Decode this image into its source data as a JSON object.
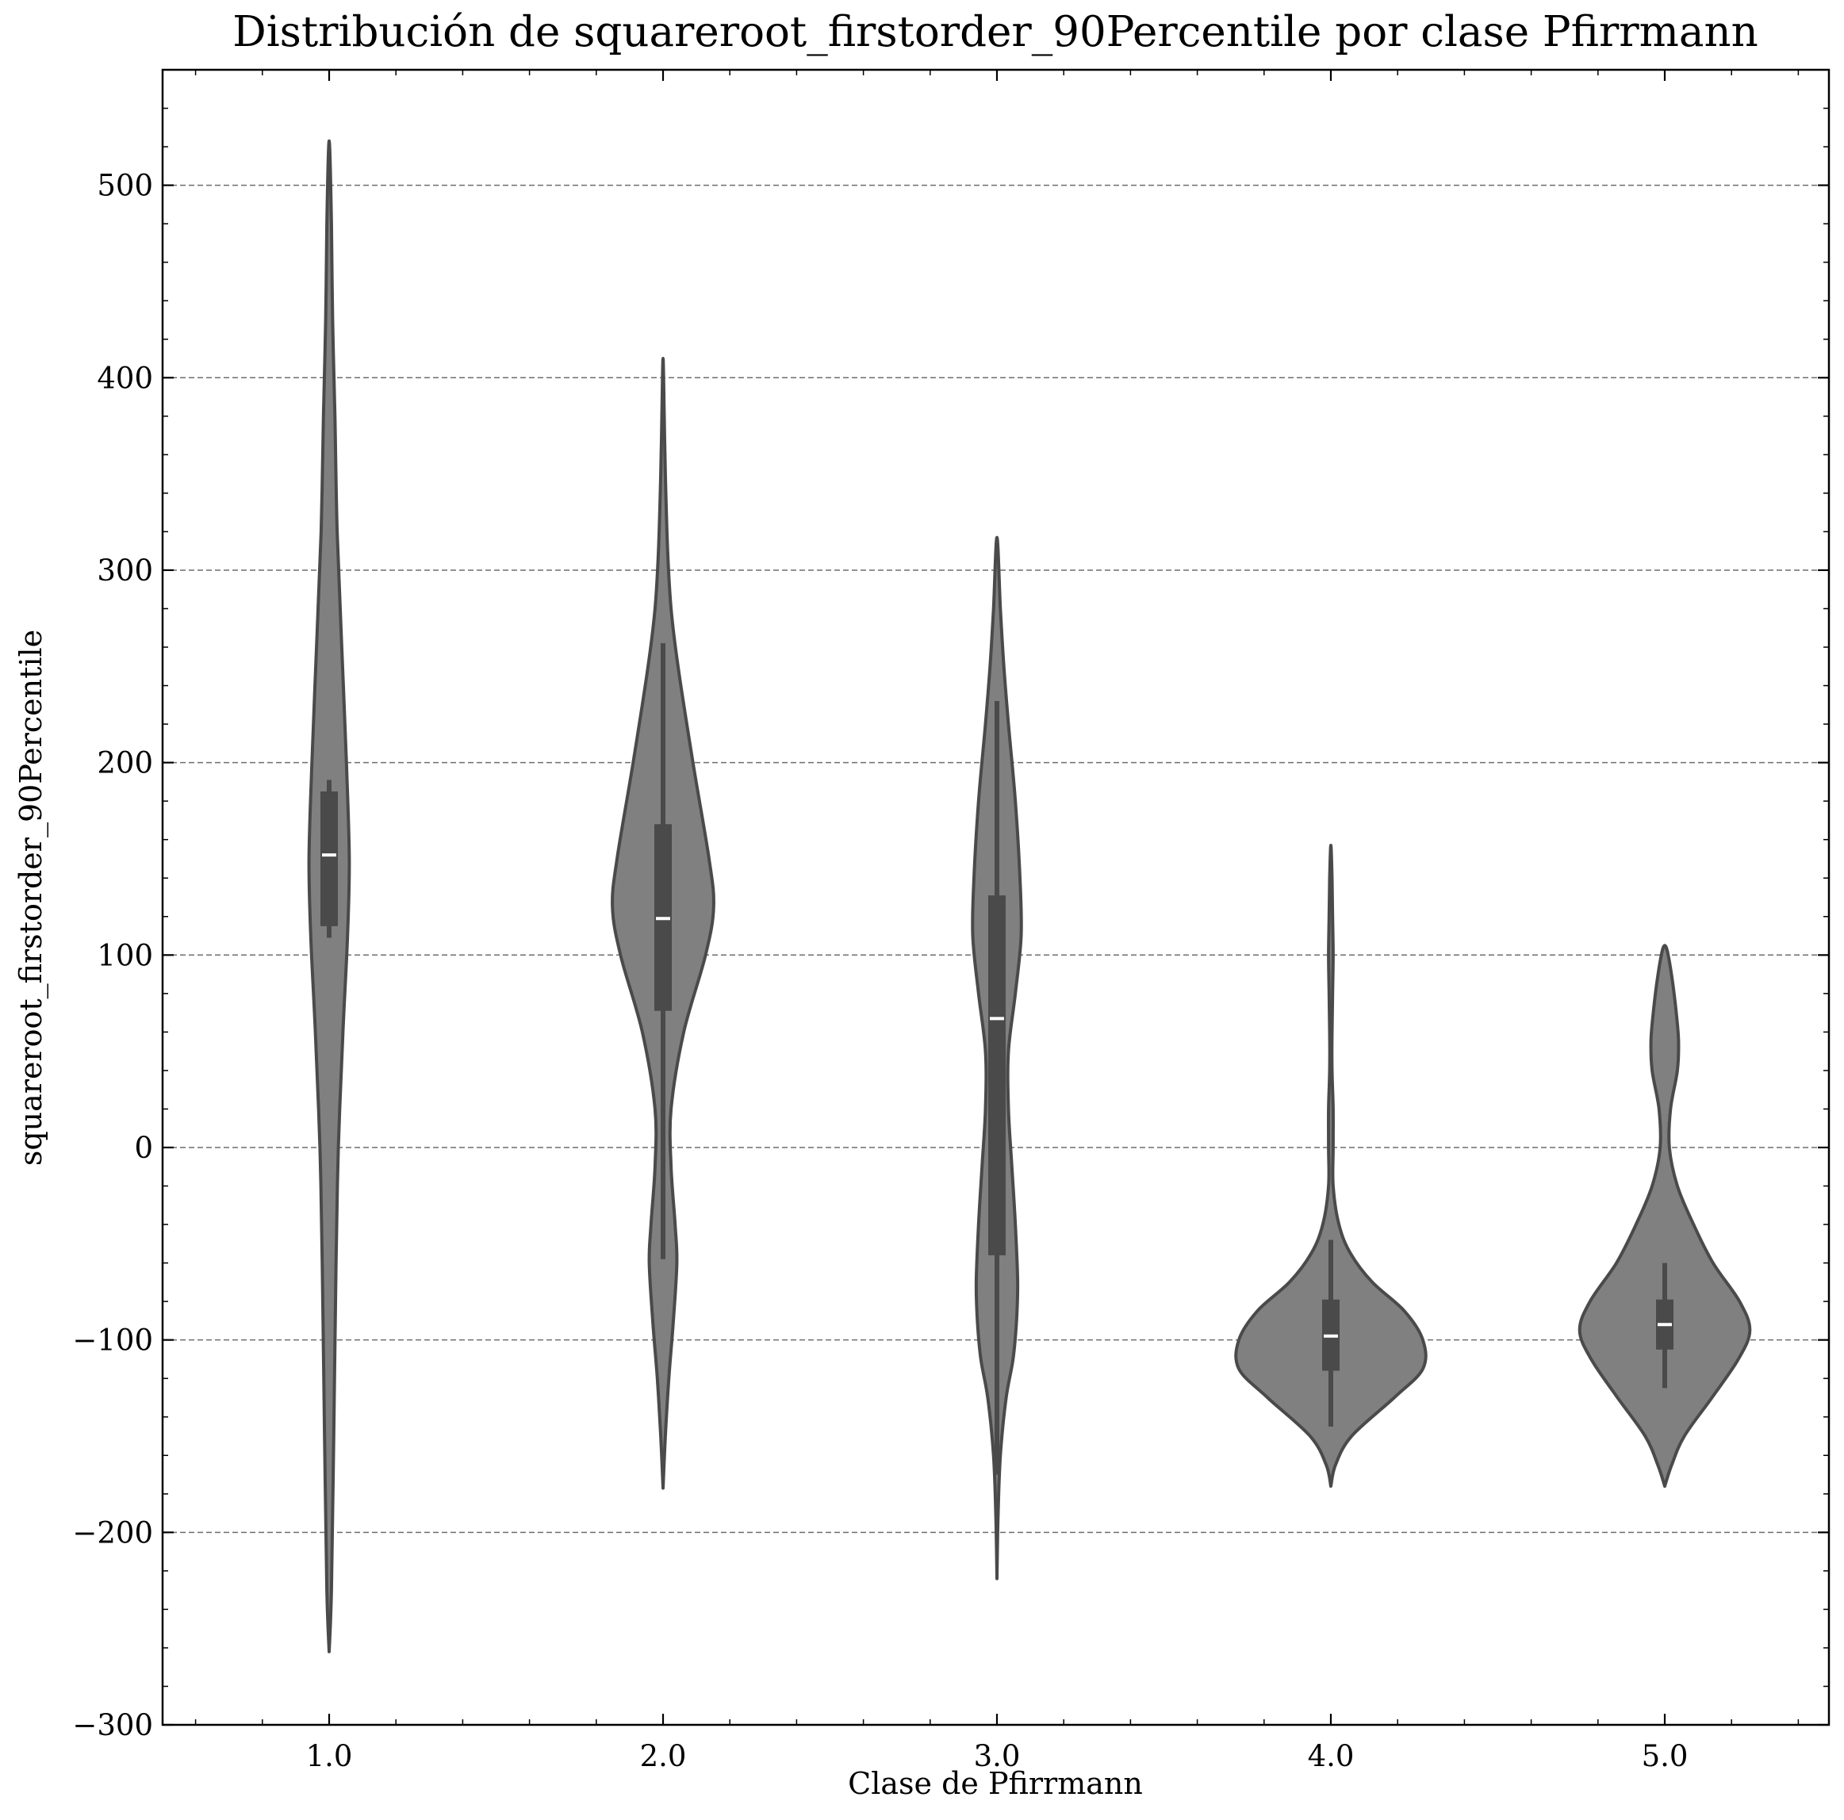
{
  "chart_data": {
    "type": "violin",
    "title": "Distribución de squareroot_firstorder_90Percentile por clase Pfirrmann",
    "xlabel": "Clase de Pfirrmann",
    "ylabel": "squareroot_firstorder_90Percentile",
    "ylim": [
      -300,
      560
    ],
    "yticks": [
      -300,
      -200,
      -100,
      0,
      100,
      200,
      300,
      400,
      500
    ],
    "ytick_labels": [
      "−300",
      "−200",
      "−100",
      "0",
      "100",
      "200",
      "300",
      "400",
      "500"
    ],
    "categories": [
      "1.0",
      "2.0",
      "3.0",
      "4.0",
      "5.0"
    ],
    "grid": true,
    "colors": {
      "violin_fill": "#808080",
      "violin_edge": "#4a4a4a",
      "box": "#4a4a4a",
      "median": "#ffffff",
      "grid": "#6e6e6e"
    },
    "violins": [
      {
        "category": "1.0",
        "min": -262,
        "max": 523,
        "q1": 115,
        "median": 152,
        "q3": 185,
        "whisker_low": 109,
        "whisker_high": 191,
        "profile": [
          [
            -262,
            0
          ],
          [
            -230,
            0.02
          ],
          [
            -150,
            0.04
          ],
          [
            -60,
            0.06
          ],
          [
            0,
            0.08
          ],
          [
            60,
            0.12
          ],
          [
            110,
            0.16
          ],
          [
            150,
            0.175
          ],
          [
            200,
            0.15
          ],
          [
            260,
            0.11
          ],
          [
            320,
            0.07
          ],
          [
            380,
            0.05
          ],
          [
            430,
            0.03
          ],
          [
            480,
            0.02
          ],
          [
            523,
            0
          ]
        ]
      },
      {
        "category": "2.0",
        "min": -177,
        "max": 410,
        "q1": 71,
        "median": 119,
        "q3": 168,
        "whisker_low": -58,
        "whisker_high": 262,
        "profile": [
          [
            -177,
            0
          ],
          [
            -150,
            0.02
          ],
          [
            -120,
            0.05
          ],
          [
            -90,
            0.09
          ],
          [
            -60,
            0.12
          ],
          [
            -40,
            0.105
          ],
          [
            -10,
            0.07
          ],
          [
            20,
            0.07
          ],
          [
            60,
            0.18
          ],
          [
            100,
            0.37
          ],
          [
            125,
            0.44
          ],
          [
            150,
            0.4
          ],
          [
            200,
            0.26
          ],
          [
            250,
            0.13
          ],
          [
            280,
            0.07
          ],
          [
            310,
            0.04
          ],
          [
            350,
            0.02
          ],
          [
            380,
            0.01
          ],
          [
            410,
            0
          ]
        ]
      },
      {
        "category": "3.0",
        "min": -224,
        "max": 317,
        "q1": -56,
        "median": 67,
        "q3": 131,
        "whisker_low": -170,
        "whisker_high": 232,
        "profile": [
          [
            -224,
            0
          ],
          [
            -190,
            0.01
          ],
          [
            -160,
            0.03
          ],
          [
            -130,
            0.08
          ],
          [
            -110,
            0.14
          ],
          [
            -90,
            0.17
          ],
          [
            -70,
            0.18
          ],
          [
            -40,
            0.16
          ],
          [
            -10,
            0.13
          ],
          [
            20,
            0.1
          ],
          [
            50,
            0.1
          ],
          [
            80,
            0.16
          ],
          [
            110,
            0.21
          ],
          [
            140,
            0.2
          ],
          [
            180,
            0.16
          ],
          [
            220,
            0.1
          ],
          [
            250,
            0.06
          ],
          [
            280,
            0.03
          ],
          [
            317,
            0
          ]
        ]
      },
      {
        "category": "4.0",
        "min": -176,
        "max": 157,
        "q1": -116,
        "median": -98,
        "q3": -79,
        "whisker_low": -145,
        "whisker_high": -48,
        "profile": [
          [
            -176,
            0
          ],
          [
            -165,
            0.04
          ],
          [
            -150,
            0.18
          ],
          [
            -130,
            0.55
          ],
          [
            -115,
            0.8
          ],
          [
            -100,
            0.8
          ],
          [
            -85,
            0.64
          ],
          [
            -70,
            0.36
          ],
          [
            -55,
            0.17
          ],
          [
            -40,
            0.07
          ],
          [
            -20,
            0.02
          ],
          [
            0,
            0.02
          ],
          [
            20,
            0.02
          ],
          [
            40,
            0.01
          ],
          [
            60,
            0.01
          ],
          [
            80,
            0.015
          ],
          [
            100,
            0.02
          ],
          [
            120,
            0.015
          ],
          [
            140,
            0.01
          ],
          [
            157,
            0
          ]
        ]
      },
      {
        "category": "5.0",
        "min": -176,
        "max": 105,
        "q1": -105,
        "median": -92,
        "q3": -79,
        "whisker_low": -125,
        "whisker_high": -60,
        "profile": [
          [
            -176,
            0
          ],
          [
            -165,
            0.06
          ],
          [
            -150,
            0.17
          ],
          [
            -130,
            0.41
          ],
          [
            -110,
            0.64
          ],
          [
            -95,
            0.74
          ],
          [
            -80,
            0.65
          ],
          [
            -60,
            0.42
          ],
          [
            -40,
            0.25
          ],
          [
            -20,
            0.11
          ],
          [
            0,
            0.04
          ],
          [
            20,
            0.05
          ],
          [
            40,
            0.11
          ],
          [
            55,
            0.12
          ],
          [
            70,
            0.1
          ],
          [
            85,
            0.07
          ],
          [
            100,
            0.03
          ],
          [
            105,
            0
          ]
        ]
      }
    ]
  }
}
